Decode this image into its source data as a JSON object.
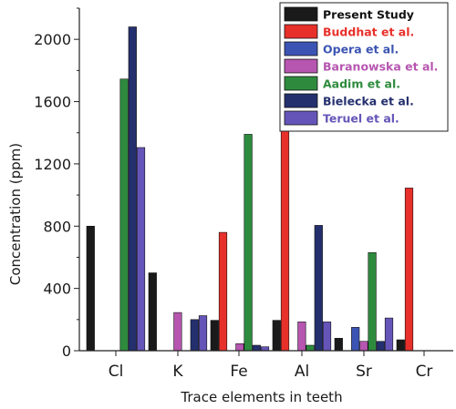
{
  "chart_data": {
    "type": "bar",
    "title": "",
    "xlabel": "Trace elements in teeth",
    "ylabel": "Concentration (ppm)",
    "categories": [
      "Cl",
      "K",
      "Fe",
      "Al",
      "Sr",
      "Cr"
    ],
    "ylim": [
      0,
      2200
    ],
    "yticks": [
      0,
      400,
      800,
      1200,
      1600,
      2000
    ],
    "grid": false,
    "legend_position": "top-right",
    "series": [
      {
        "name": "Present Study",
        "color": "#1a1a1a",
        "values": [
          800,
          500,
          195,
          195,
          80,
          70
        ]
      },
      {
        "name": "Buddhat et al.",
        "color": "#e8302a",
        "values": [
          null,
          null,
          760,
          1455,
          null,
          1045
        ]
      },
      {
        "name": "Opera et al.",
        "color": "#3b54b3",
        "values": [
          null,
          null,
          null,
          null,
          150,
          null
        ]
      },
      {
        "name": "Baranowska et al.",
        "color": "#b656b0",
        "values": [
          null,
          245,
          45,
          185,
          60,
          null
        ]
      },
      {
        "name": "Aadim et al.",
        "color": "#2e8b3e",
        "values": [
          1745,
          null,
          1390,
          35,
          630,
          null
        ]
      },
      {
        "name": "Bielecka et al.",
        "color": "#24306e",
        "values": [
          2080,
          200,
          35,
          805,
          60,
          null
        ]
      },
      {
        "name": "Teruel et al.",
        "color": "#6655b8",
        "values": [
          1305,
          225,
          25,
          185,
          210,
          null
        ]
      }
    ]
  }
}
